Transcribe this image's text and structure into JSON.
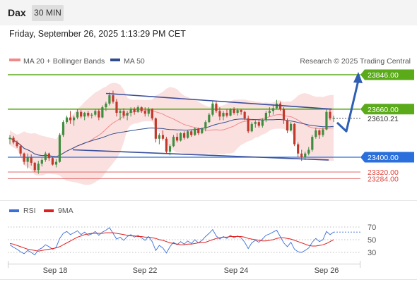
{
  "header": {
    "symbol": "Dax",
    "timeframe": "30 MIN"
  },
  "datetime": "Friday, September 26, 2025 1:13:29 PM CET",
  "legend": {
    "ma20": "MA 20 + Bollinger Bands",
    "ma50": "MA 50",
    "ma20_color": "#f08a8a",
    "ma50_color": "#2f4d8c"
  },
  "credit": "Research © 2025 Trading Central",
  "colors": {
    "up": "#3f8d3f",
    "down": "#c0392b",
    "resistance": "#5aaa1a",
    "support_blue": "#2a6fdb",
    "support_red": "#e36b6b",
    "band": "#fadada",
    "arrow": "#2f5fb3"
  },
  "chart_data": [
    {
      "type": "candlestick",
      "x_ticks": [
        "Sep 18",
        "Sep 22",
        "Sep 24",
        "Sep 26"
      ],
      "ylim": [
        23230,
        23905
      ],
      "ohlc": [
        [
          23498,
          23520,
          23470,
          23505
        ],
        [
          23505,
          23515,
          23470,
          23480
        ],
        [
          23480,
          23490,
          23450,
          23460
        ],
        [
          23460,
          23470,
          23405,
          23420
        ],
        [
          23420,
          23425,
          23360,
          23375
        ],
        [
          23375,
          23420,
          23340,
          23400
        ],
        [
          23400,
          23415,
          23355,
          23370
        ],
        [
          23370,
          23375,
          23320,
          23330
        ],
        [
          23330,
          23380,
          23310,
          23365
        ],
        [
          23365,
          23395,
          23350,
          23385
        ],
        [
          23385,
          23430,
          23375,
          23420
        ],
        [
          23420,
          23425,
          23380,
          23395
        ],
        [
          23395,
          23400,
          23355,
          23360
        ],
        [
          23360,
          23390,
          23345,
          23375
        ],
        [
          23375,
          23530,
          23370,
          23520
        ],
        [
          23520,
          23600,
          23510,
          23590
        ],
        [
          23590,
          23625,
          23580,
          23615
        ],
        [
          23615,
          23650,
          23580,
          23600
        ],
        [
          23600,
          23625,
          23570,
          23615
        ],
        [
          23615,
          23660,
          23605,
          23645
        ],
        [
          23645,
          23655,
          23610,
          23620
        ],
        [
          23620,
          23645,
          23600,
          23640
        ],
        [
          23640,
          23650,
          23615,
          23625
        ],
        [
          23625,
          23640,
          23610,
          23630
        ],
        [
          23630,
          23660,
          23620,
          23650
        ],
        [
          23650,
          23660,
          23600,
          23615
        ],
        [
          23615,
          23680,
          23610,
          23670
        ],
        [
          23670,
          23700,
          23650,
          23690
        ],
        [
          23690,
          23750,
          23680,
          23735
        ],
        [
          23735,
          23760,
          23690,
          23700
        ],
        [
          23700,
          23715,
          23620,
          23640
        ],
        [
          23640,
          23660,
          23600,
          23650
        ],
        [
          23650,
          23665,
          23610,
          23625
        ],
        [
          23625,
          23650,
          23600,
          23640
        ],
        [
          23640,
          23670,
          23620,
          23660
        ],
        [
          23660,
          23670,
          23630,
          23645
        ],
        [
          23645,
          23680,
          23640,
          23670
        ],
        [
          23670,
          23675,
          23640,
          23650
        ],
        [
          23650,
          23670,
          23620,
          23635
        ],
        [
          23635,
          23670,
          23620,
          23660
        ],
        [
          23660,
          23665,
          23600,
          23610
        ],
        [
          23610,
          23615,
          23480,
          23500
        ],
        [
          23500,
          23530,
          23470,
          23520
        ],
        [
          23520,
          23545,
          23490,
          23500
        ],
        [
          23500,
          23510,
          23420,
          23430
        ],
        [
          23430,
          23470,
          23410,
          23460
        ],
        [
          23460,
          23520,
          23455,
          23510
        ],
        [
          23510,
          23530,
          23480,
          23490
        ],
        [
          23490,
          23535,
          23485,
          23530
        ],
        [
          23530,
          23540,
          23495,
          23505
        ],
        [
          23505,
          23545,
          23500,
          23540
        ],
        [
          23540,
          23550,
          23510,
          23520
        ],
        [
          23520,
          23560,
          23515,
          23555
        ],
        [
          23555,
          23560,
          23520,
          23530
        ],
        [
          23530,
          23560,
          23525,
          23555
        ],
        [
          23555,
          23600,
          23540,
          23590
        ],
        [
          23590,
          23640,
          23585,
          23630
        ],
        [
          23630,
          23705,
          23620,
          23690
        ],
        [
          23690,
          23700,
          23640,
          23650
        ],
        [
          23650,
          23670,
          23600,
          23620
        ],
        [
          23620,
          23650,
          23600,
          23640
        ],
        [
          23640,
          23660,
          23615,
          23625
        ],
        [
          23625,
          23665,
          23620,
          23660
        ],
        [
          23660,
          23670,
          23630,
          23640
        ],
        [
          23640,
          23665,
          23625,
          23655
        ],
        [
          23655,
          23660,
          23630,
          23645
        ],
        [
          23645,
          23650,
          23600,
          23610
        ],
        [
          23610,
          23625,
          23530,
          23540
        ],
        [
          23540,
          23590,
          23535,
          23580
        ],
        [
          23580,
          23600,
          23560,
          23590
        ],
        [
          23590,
          23600,
          23560,
          23570
        ],
        [
          23570,
          23610,
          23560,
          23600
        ],
        [
          23600,
          23650,
          23590,
          23640
        ],
        [
          23640,
          23670,
          23620,
          23650
        ],
        [
          23650,
          23680,
          23630,
          23665
        ],
        [
          23665,
          23710,
          23660,
          23690
        ],
        [
          23690,
          23700,
          23650,
          23660
        ],
        [
          23660,
          23670,
          23580,
          23600
        ],
        [
          23600,
          23610,
          23530,
          23545
        ],
        [
          23545,
          23590,
          23540,
          23580
        ],
        [
          23580,
          23585,
          23460,
          23470
        ],
        [
          23470,
          23480,
          23400,
          23420
        ],
        [
          23420,
          23440,
          23380,
          23400
        ],
        [
          23400,
          23430,
          23385,
          23420
        ],
        [
          23420,
          23455,
          23410,
          23440
        ],
        [
          23440,
          23520,
          23430,
          23510
        ],
        [
          23510,
          23560,
          23500,
          23545
        ],
        [
          23545,
          23550,
          23500,
          23520
        ],
        [
          23520,
          23560,
          23510,
          23550
        ],
        [
          23550,
          23660,
          23545,
          23645
        ],
        [
          23645,
          23665,
          23600,
          23610
        ],
        [
          23610,
          23625,
          23590,
          23612
        ]
      ],
      "ma20_level": 23577,
      "levels": [
        {
          "label": "23846.00",
          "value": 23846,
          "kind": "resistance"
        },
        {
          "label": "23660.00",
          "value": 23660,
          "kind": "resistance"
        },
        {
          "label": "23610.21",
          "value": 23610.21,
          "kind": "last"
        },
        {
          "label": "23400.00",
          "value": 23400,
          "kind": "pivot"
        },
        {
          "label": "23320.00",
          "value": 23320,
          "kind": "support"
        },
        {
          "label": "23284.00",
          "value": 23284,
          "kind": "support"
        }
      ],
      "channel": {
        "upper": [
          [
            23745,
            23660
          ]
        ],
        "lower": [
          [
            23440,
            23385
          ]
        ]
      },
      "scenario_path": [
        23610,
        23540,
        23846
      ]
    },
    {
      "type": "line",
      "legend": [
        {
          "name": "RSI",
          "color": "#3b6fd8"
        },
        {
          "name": "9MA",
          "color": "#e02020"
        }
      ],
      "ylim": [
        20,
        80
      ],
      "y_ticks": [
        70,
        50,
        30
      ],
      "rsi": [
        42,
        38,
        35,
        31,
        28,
        33,
        30,
        26,
        34,
        37,
        42,
        39,
        35,
        38,
        52,
        60,
        63,
        58,
        61,
        64,
        58,
        62,
        57,
        59,
        63,
        57,
        62,
        65,
        69,
        60,
        51,
        54,
        49,
        55,
        58,
        54,
        57,
        53,
        49,
        55,
        47,
        33,
        41,
        37,
        29,
        39,
        46,
        42,
        47,
        43,
        48,
        44,
        50,
        45,
        49,
        55,
        60,
        66,
        56,
        51,
        55,
        52,
        57,
        53,
        56,
        53,
        46,
        36,
        45,
        49,
        46,
        51,
        57,
        59,
        62,
        65,
        55,
        45,
        39,
        46,
        35,
        31,
        30,
        33,
        37,
        46,
        52,
        47,
        50,
        63,
        58,
        62
      ],
      "ma9": [
        44,
        43,
        41,
        39,
        37,
        35,
        34,
        33,
        32,
        33,
        34,
        35,
        36,
        37,
        39,
        42,
        45,
        48,
        51,
        54,
        56,
        58,
        59,
        60,
        60,
        60,
        60,
        61,
        61,
        61,
        60,
        59,
        58,
        57,
        56,
        56,
        55,
        55,
        54,
        54,
        53,
        52,
        50,
        49,
        47,
        45,
        44,
        43,
        42,
        42,
        43,
        43,
        44,
        45,
        46,
        46,
        48,
        50,
        52,
        53,
        54,
        54,
        55,
        55,
        55,
        55,
        54,
        52,
        51,
        50,
        49,
        48,
        48,
        49,
        50,
        52,
        53,
        53,
        52,
        51,
        49,
        47,
        45,
        43,
        41,
        40,
        40,
        41,
        42,
        44,
        47,
        50
      ]
    }
  ]
}
